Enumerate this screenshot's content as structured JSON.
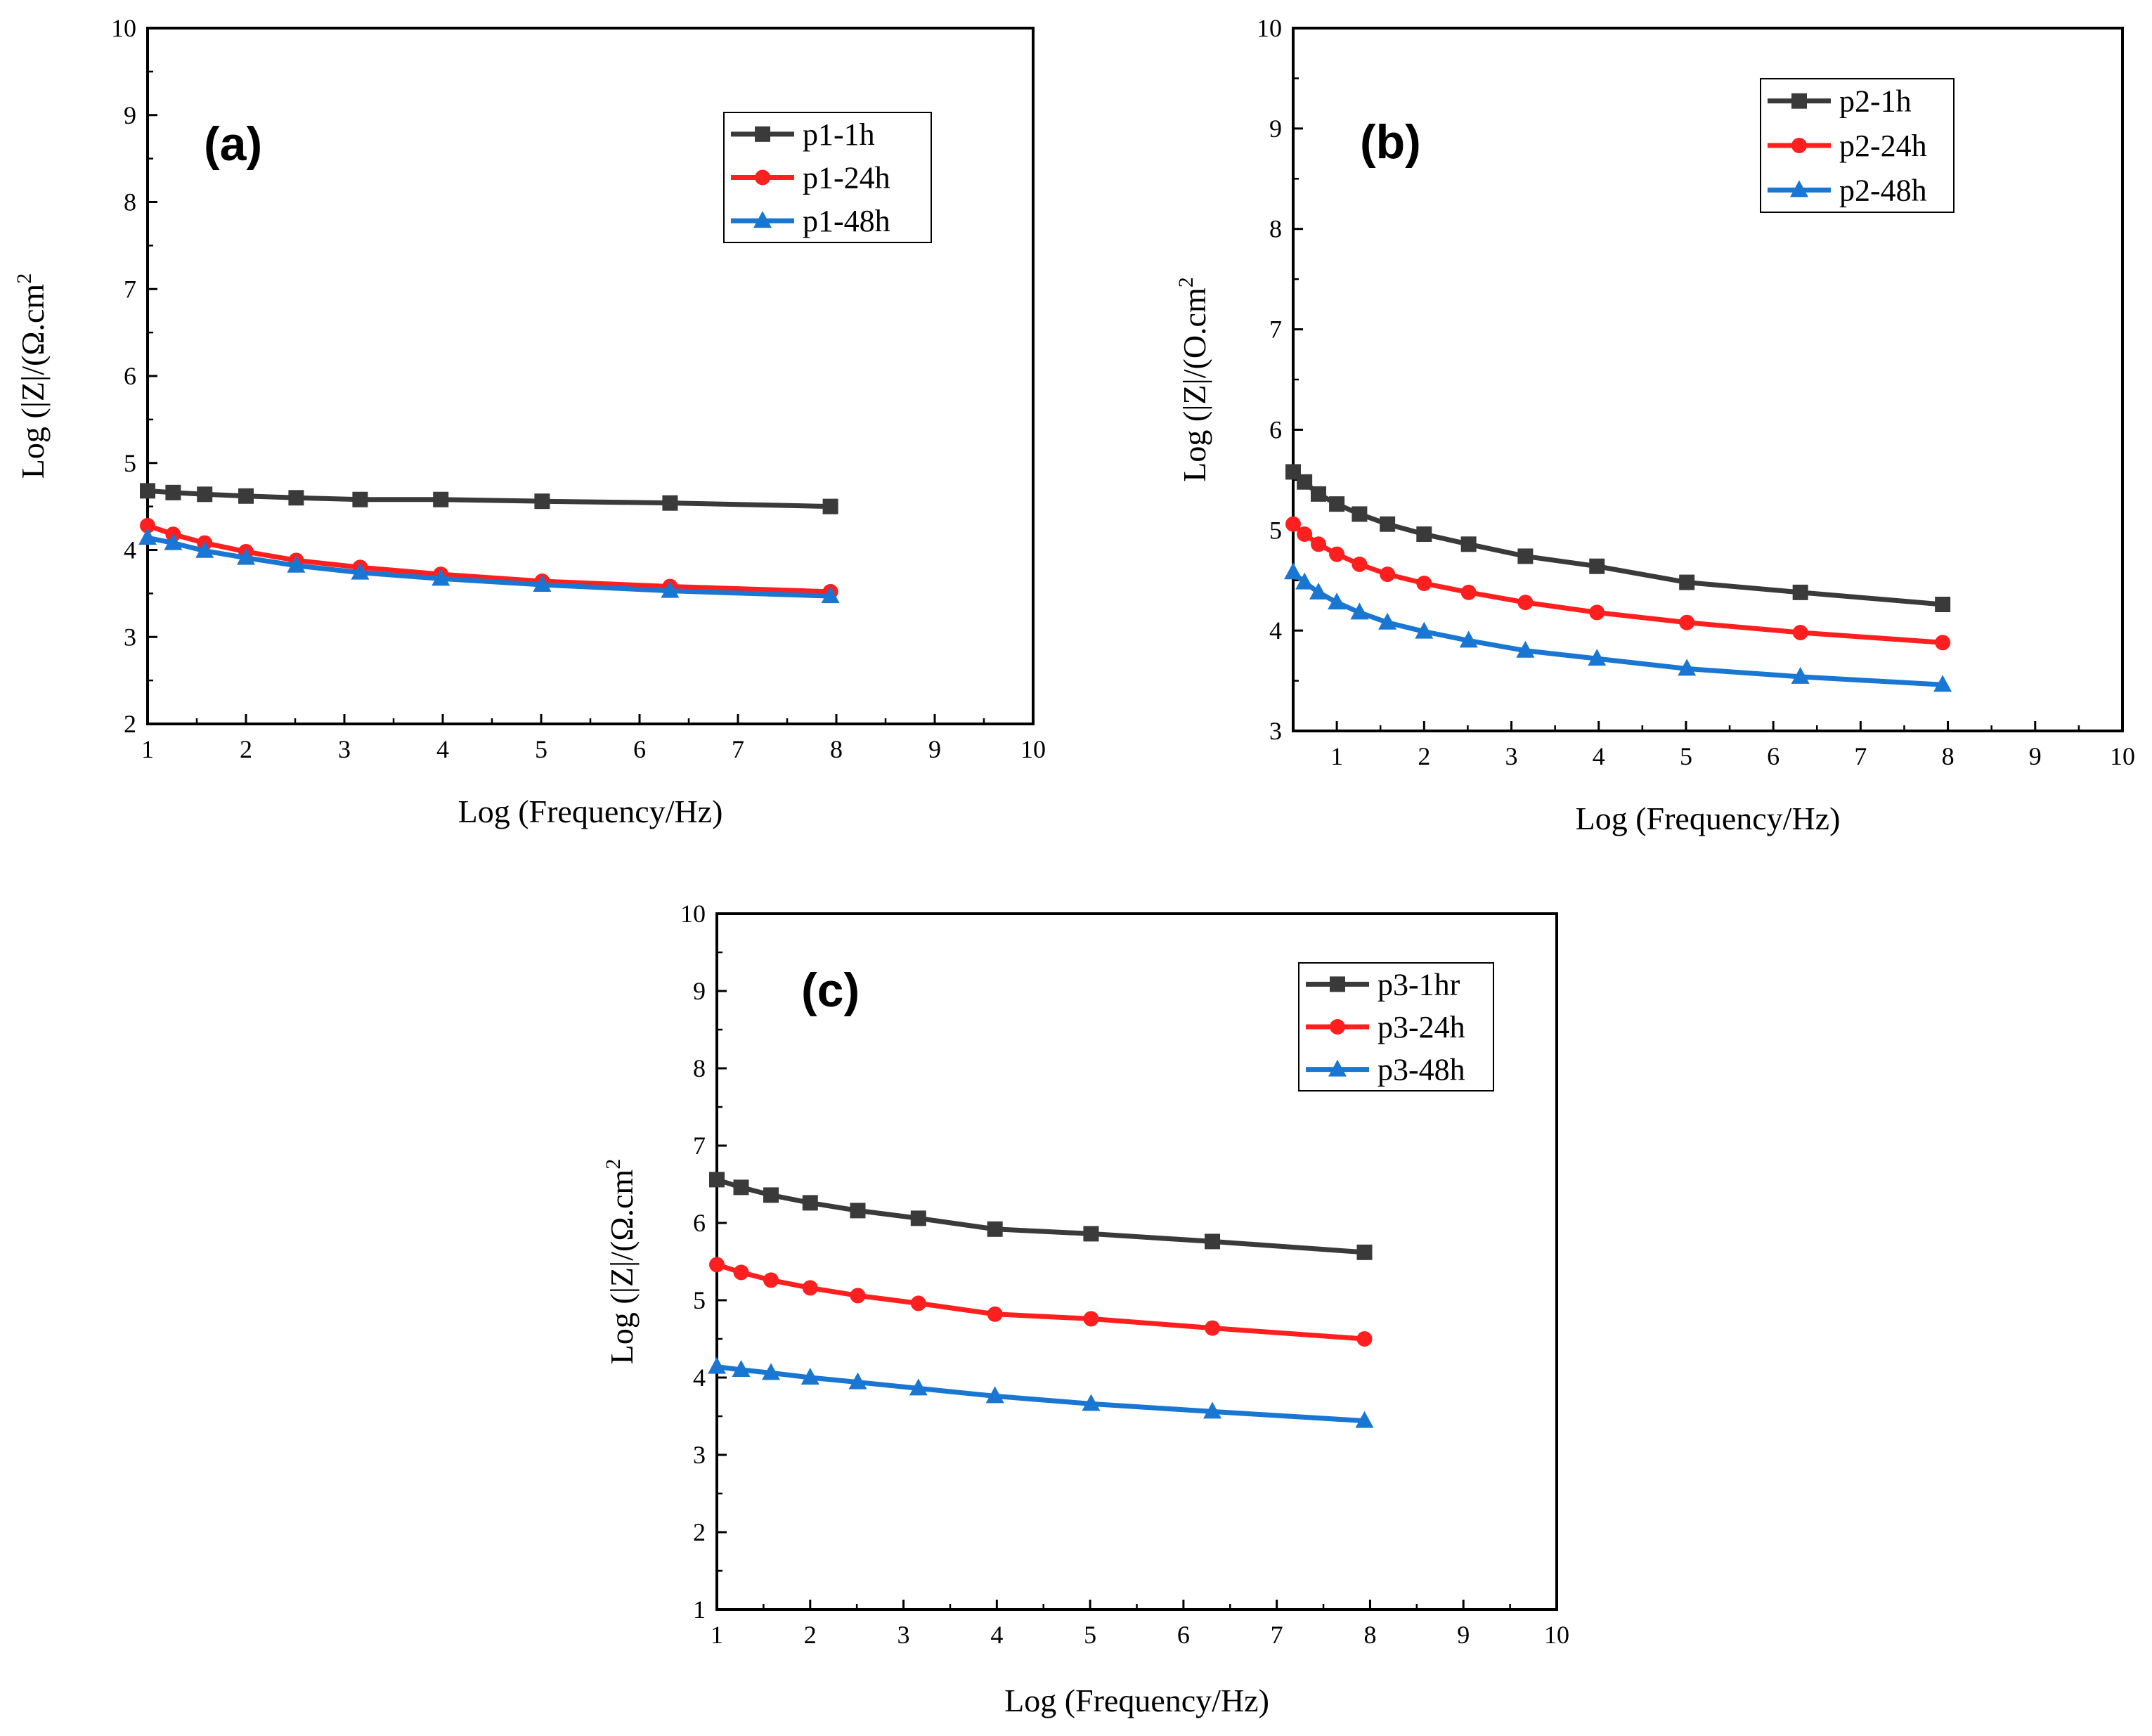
{
  "chart_data": [
    {
      "type": "line",
      "panel": "(a)",
      "xlabel": "Log (Frequency/Hz)",
      "ylabel_main": "Log (|Z|/(Ω.cm",
      "ylabel_sup": "2",
      "xlim": [
        1,
        10
      ],
      "ylim": [
        2,
        10
      ],
      "xticks": [
        "1",
        "2",
        "3",
        "4",
        "5",
        "6",
        "7",
        "8",
        "9",
        "10"
      ],
      "yticks": [
        "2",
        "3",
        "4",
        "5",
        "6",
        "7",
        "8",
        "9",
        "10"
      ],
      "legend_position": "top-right",
      "x": [
        1.0,
        1.26,
        1.58,
        2.0,
        2.51,
        3.16,
        3.98,
        5.01,
        6.31,
        7.94
      ],
      "series": [
        {
          "name": "p1-1h",
          "color": "#3a3a3a",
          "marker": "square",
          "values": [
            4.68,
            4.66,
            4.64,
            4.62,
            4.6,
            4.58,
            4.58,
            4.56,
            4.54,
            4.5
          ]
        },
        {
          "name": "p1-24h",
          "color": "#ff1f1f",
          "marker": "circle",
          "values": [
            4.28,
            4.18,
            4.08,
            3.98,
            3.88,
            3.8,
            3.72,
            3.64,
            3.58,
            3.52
          ]
        },
        {
          "name": "p1-48h",
          "color": "#1976d2",
          "marker": "triangle",
          "values": [
            4.14,
            4.08,
            3.99,
            3.91,
            3.82,
            3.74,
            3.67,
            3.6,
            3.53,
            3.47
          ]
        }
      ]
    },
    {
      "type": "line",
      "panel": "(b)",
      "xlabel": "Log (Frequency/Hz)",
      "ylabel_main": "Log (|Z|/(O.cm",
      "ylabel_sup": "2",
      "xlim": [
        0.5,
        10
      ],
      "ylim": [
        3,
        10
      ],
      "xticks": [
        "1",
        "2",
        "3",
        "4",
        "5",
        "6",
        "7",
        "8",
        "9",
        "10"
      ],
      "yticks": [
        "3",
        "4",
        "5",
        "6",
        "7",
        "8",
        "9",
        "10"
      ],
      "legend_position": "top-right",
      "x": [
        0.5,
        0.63,
        0.79,
        1.0,
        1.26,
        1.58,
        2.0,
        2.51,
        3.16,
        3.98,
        5.01,
        6.31,
        7.94
      ],
      "series": [
        {
          "name": "p2-1h",
          "color": "#3a3a3a",
          "marker": "square",
          "values": [
            5.58,
            5.48,
            5.36,
            5.26,
            5.16,
            5.06,
            4.96,
            4.86,
            4.74,
            4.64,
            4.48,
            4.38,
            4.26
          ]
        },
        {
          "name": "p2-24h",
          "color": "#ff1f1f",
          "marker": "circle",
          "values": [
            5.06,
            4.96,
            4.86,
            4.76,
            4.66,
            4.56,
            4.47,
            4.38,
            4.28,
            4.18,
            4.08,
            3.98,
            3.88
          ]
        },
        {
          "name": "p2-48h",
          "color": "#1976d2",
          "marker": "triangle",
          "values": [
            4.58,
            4.48,
            4.38,
            4.28,
            4.18,
            4.08,
            3.99,
            3.9,
            3.8,
            3.72,
            3.62,
            3.54,
            3.46
          ]
        }
      ]
    },
    {
      "type": "line",
      "panel": "(c)",
      "xlabel": "Log (Frequency/Hz)",
      "ylabel_main": "Log (|Z|/(Ω.cm",
      "ylabel_sup": "2",
      "xlim": [
        1,
        10
      ],
      "ylim": [
        1,
        10
      ],
      "xticks": [
        "1",
        "2",
        "3",
        "4",
        "5",
        "6",
        "7",
        "8",
        "9",
        "10"
      ],
      "yticks": [
        "1",
        "2",
        "3",
        "4",
        "5",
        "6",
        "7",
        "8",
        "9",
        "10"
      ],
      "legend_position": "top-right",
      "x": [
        1.0,
        1.26,
        1.58,
        2.0,
        2.51,
        3.16,
        3.98,
        5.01,
        6.31,
        7.94
      ],
      "series": [
        {
          "name": "p3-1hr",
          "color": "#3a3a3a",
          "marker": "square",
          "values": [
            6.56,
            6.46,
            6.36,
            6.26,
            6.16,
            6.06,
            5.92,
            5.86,
            5.76,
            5.62
          ]
        },
        {
          "name": "p3-24h",
          "color": "#ff1f1f",
          "marker": "circle",
          "values": [
            5.46,
            5.36,
            5.26,
            5.16,
            5.06,
            4.96,
            4.82,
            4.76,
            4.64,
            4.5
          ]
        },
        {
          "name": "p3-48h",
          "color": "#1976d2",
          "marker": "triangle",
          "values": [
            4.14,
            4.1,
            4.06,
            4.0,
            3.94,
            3.86,
            3.76,
            3.66,
            3.56,
            3.44
          ]
        }
      ]
    }
  ]
}
